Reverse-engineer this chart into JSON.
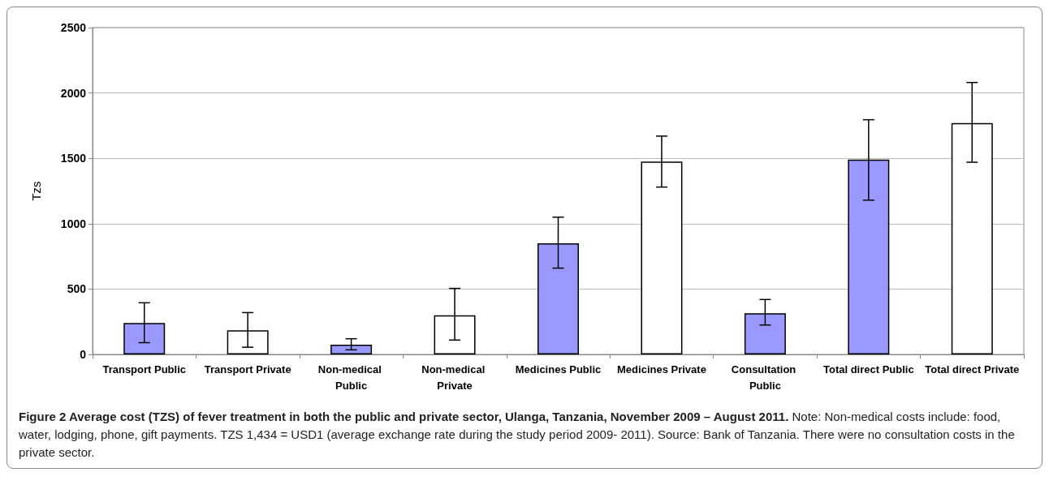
{
  "chart_data": {
    "type": "bar",
    "title": "Figure 2 Average cost (TZS) of fever treatment in both the public and private sector, Ulanga, Tanzania, November 2009 – August 2011.",
    "ylabel": "Tzs",
    "categories": [
      "Transport Public",
      "Transport Private",
      "Non-medical Public",
      "Non-medical Private",
      "Medicines Public",
      "Medicines Private",
      "Consultation Public",
      "Total direct Public",
      "Total direct Private"
    ],
    "values": [
      240,
      185,
      75,
      300,
      850,
      1475,
      315,
      1490,
      1770
    ],
    "errors": [
      [
        90,
        395
      ],
      [
        55,
        320
      ],
      [
        35,
        120
      ],
      [
        110,
        505
      ],
      [
        660,
        1050
      ],
      [
        1280,
        1670
      ],
      [
        225,
        420
      ],
      [
        1180,
        1795
      ],
      [
        1470,
        2080
      ]
    ],
    "colors": [
      "#9999ff",
      "#ffffff",
      "#9999ff",
      "#ffffff",
      "#9999ff",
      "#ffffff",
      "#9999ff",
      "#9999ff",
      "#ffffff"
    ],
    "ylim": [
      0,
      2500
    ],
    "yticks": [
      0,
      500,
      1000,
      1500,
      2000,
      2500
    ],
    "grid": "y",
    "annotations": [
      "Note: Non-medical costs include: food, water, lodging, phone, gift payments. TZS 1,434 = USD1 (average exchange rate during the study period 2009- 2011). Source: Bank of Tanzania. There were no consultation costs in the private sector."
    ]
  }
}
